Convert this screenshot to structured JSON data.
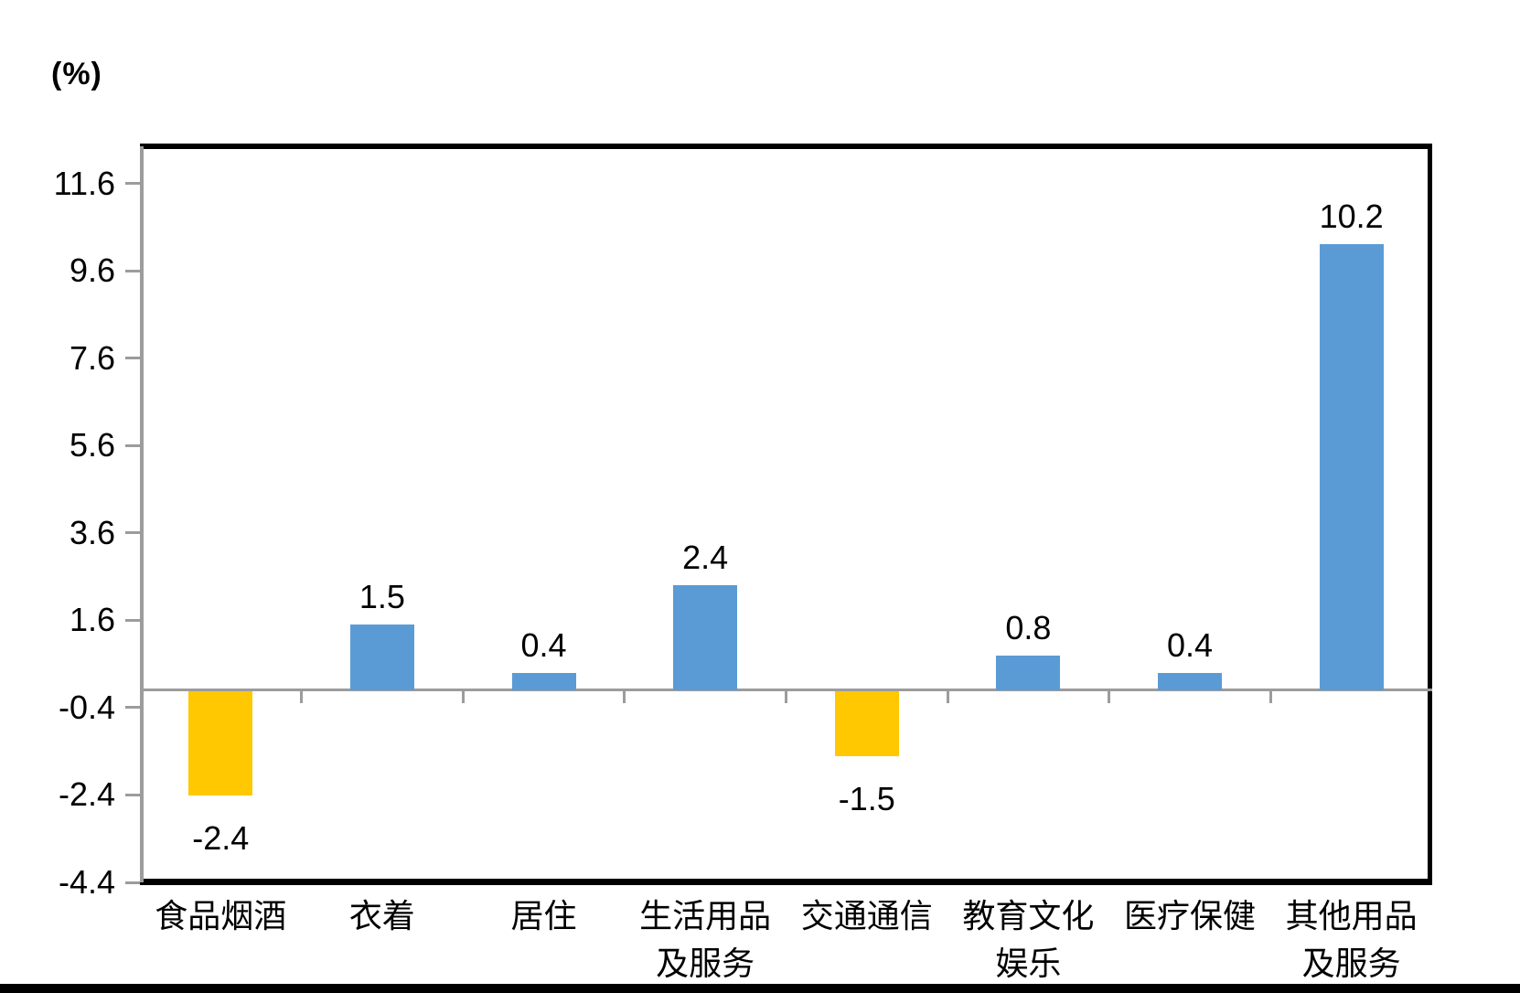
{
  "chart_data": {
    "type": "bar",
    "title": "",
    "unit_label": "(%)",
    "categories": [
      "食品烟酒",
      "衣着",
      "居住",
      "生活用品及服务",
      "交通通信",
      "教育文化娱乐",
      "医疗保健",
      "其他用品及服务"
    ],
    "category_label_lines": [
      [
        "食品烟酒"
      ],
      [
        "衣着"
      ],
      [
        "居住"
      ],
      [
        "生活用品",
        "及服务"
      ],
      [
        "交通通信"
      ],
      [
        "教育文化",
        "娱乐"
      ],
      [
        "医疗保健"
      ],
      [
        "其他用品",
        "及服务"
      ]
    ],
    "values": [
      -2.4,
      1.5,
      0.4,
      2.4,
      -1.5,
      0.8,
      0.4,
      10.2
    ],
    "data_labels": [
      "-2.4",
      "1.5",
      "0.4",
      "2.4",
      "-1.5",
      "0.8",
      "0.4",
      "10.2"
    ],
    "y_ticks": [
      11.6,
      9.6,
      7.6,
      5.6,
      3.6,
      1.6,
      -0.4,
      -2.4,
      -4.4
    ],
    "ylim": [
      -4.4,
      12.45
    ],
    "grid": false,
    "legend": false,
    "colors": {
      "positive_bar": "#5B9BD5",
      "negative_bar": "#FFC800",
      "axis": "#9C9C9C",
      "plot_border": "#000000",
      "text": "#000000"
    }
  }
}
